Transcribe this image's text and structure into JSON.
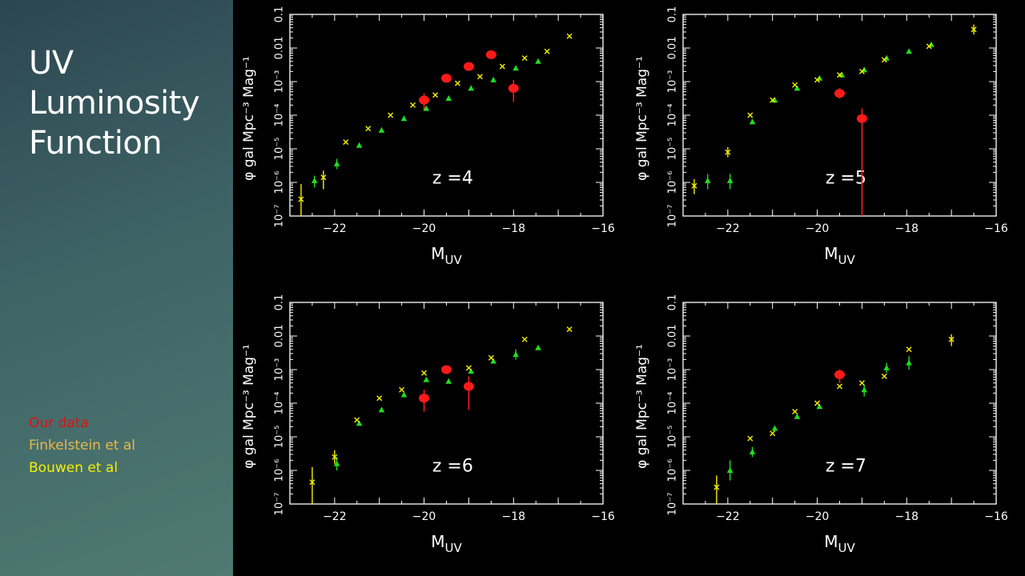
{
  "slide": {
    "title_lines": [
      "UV",
      "Luminosity",
      "Function"
    ],
    "legend": [
      {
        "label": "Our data",
        "color": "#e01010"
      },
      {
        "label": "Finkelstein et al",
        "color": "#e8b84a"
      },
      {
        "label": "Bouwen et al",
        "color": "#f5f000"
      }
    ]
  },
  "chart_data": [
    {
      "type": "scatter",
      "annotation": "z  =4",
      "xlabel": "M",
      "xlabel_sub": "UV",
      "ylabel": "φ gal Mpc⁻³ Mag⁻¹",
      "xlim": [
        -23,
        -16
      ],
      "ylim_log10": [
        -7,
        -1
      ],
      "x_ticks": [
        -22,
        -20,
        -18,
        -16
      ],
      "y_ticks": [
        "10⁻⁷",
        "10⁻⁶",
        "10⁻⁵",
        "10⁻⁴",
        "10⁻³",
        "0.01",
        "0.1"
      ],
      "series": [
        {
          "marker": "circle",
          "color": "#ff1a1a",
          "points": [
            {
              "x": -20.0,
              "logy": -3.55,
              "lo": -3.85,
              "hi": -3.35
            },
            {
              "x": -19.5,
              "logy": -2.9,
              "lo": -3.0,
              "hi": -2.8
            },
            {
              "x": -19.0,
              "logy": -2.55,
              "lo": -2.62,
              "hi": -2.48
            },
            {
              "x": -18.5,
              "logy": -2.2,
              "lo": -2.28,
              "hi": -2.12
            },
            {
              "x": -18.0,
              "logy": -3.2,
              "lo": -3.6,
              "hi": -2.95
            }
          ]
        },
        {
          "marker": "triangle",
          "color": "#22dd22",
          "points": [
            {
              "x": -22.45,
              "logy": -5.95,
              "lo": -6.15,
              "hi": -5.8
            },
            {
              "x": -21.95,
              "logy": -5.45,
              "lo": -5.6,
              "hi": -5.3
            },
            {
              "x": -21.45,
              "logy": -4.9
            },
            {
              "x": -20.95,
              "logy": -4.45
            },
            {
              "x": -20.45,
              "logy": -4.1
            },
            {
              "x": -19.95,
              "logy": -3.8
            },
            {
              "x": -19.45,
              "logy": -3.5
            },
            {
              "x": -18.95,
              "logy": -3.2
            },
            {
              "x": -18.45,
              "logy": -2.95
            },
            {
              "x": -17.95,
              "logy": -2.6
            },
            {
              "x": -17.45,
              "logy": -2.4
            }
          ]
        },
        {
          "marker": "cross",
          "color": "#f5f000",
          "points": [
            {
              "x": -22.75,
              "logy": -6.5,
              "lo": -7.0,
              "hi": -6.05
            },
            {
              "x": -22.25,
              "logy": -5.85,
              "lo": -6.2,
              "hi": -5.65
            },
            {
              "x": -21.75,
              "logy": -4.8
            },
            {
              "x": -21.25,
              "logy": -4.4
            },
            {
              "x": -20.75,
              "logy": -4.0
            },
            {
              "x": -20.25,
              "logy": -3.7
            },
            {
              "x": -19.75,
              "logy": -3.4
            },
            {
              "x": -19.25,
              "logy": -3.05
            },
            {
              "x": -18.75,
              "logy": -2.85
            },
            {
              "x": -18.25,
              "logy": -2.55
            },
            {
              "x": -17.75,
              "logy": -2.3
            },
            {
              "x": -17.25,
              "logy": -2.1
            },
            {
              "x": -16.75,
              "logy": -1.65
            }
          ]
        }
      ]
    },
    {
      "type": "scatter",
      "annotation": "z  =5",
      "xlabel": "M",
      "xlabel_sub": "UV",
      "ylabel": "φ gal Mpc⁻³ Mag⁻¹",
      "xlim": [
        -23,
        -16
      ],
      "ylim_log10": [
        -7,
        -1
      ],
      "x_ticks": [
        -22,
        -20,
        -18,
        -16
      ],
      "y_ticks": [
        "10⁻⁷",
        "10⁻⁶",
        "10⁻⁵",
        "10⁻⁴",
        "10⁻³",
        "0.01",
        "0.1"
      ],
      "series": [
        {
          "marker": "circle",
          "color": "#ff1a1a",
          "points": [
            {
              "x": -19.5,
              "logy": -3.35,
              "lo": -3.5,
              "hi": -3.2
            },
            {
              "x": -19.0,
              "logy": -4.1,
              "lo": -7.0,
              "hi": -3.8
            }
          ]
        },
        {
          "marker": "triangle",
          "color": "#22dd22",
          "points": [
            {
              "x": -22.45,
              "logy": -5.95,
              "lo": -6.2,
              "hi": -5.75
            },
            {
              "x": -21.95,
              "logy": -5.95,
              "lo": -6.2,
              "hi": -5.75
            },
            {
              "x": -21.45,
              "logy": -4.2
            },
            {
              "x": -20.95,
              "logy": -3.55
            },
            {
              "x": -20.45,
              "logy": -3.2
            },
            {
              "x": -19.95,
              "logy": -2.9
            },
            {
              "x": -19.45,
              "logy": -2.8
            },
            {
              "x": -18.95,
              "logy": -2.65
            },
            {
              "x": -18.45,
              "logy": -2.3
            },
            {
              "x": -17.95,
              "logy": -2.1
            },
            {
              "x": -17.45,
              "logy": -1.9
            }
          ]
        },
        {
          "marker": "cross",
          "color": "#f5f000",
          "points": [
            {
              "x": -22.75,
              "logy": -6.1,
              "lo": -6.35,
              "hi": -5.9
            },
            {
              "x": -22.0,
              "logy": -5.1,
              "lo": -5.25,
              "hi": -4.95
            },
            {
              "x": -21.5,
              "logy": -4.0
            },
            {
              "x": -21.0,
              "logy": -3.55
            },
            {
              "x": -20.5,
              "logy": -3.1
            },
            {
              "x": -20.0,
              "logy": -2.95
            },
            {
              "x": -19.5,
              "logy": -2.8
            },
            {
              "x": -19.0,
              "logy": -2.7
            },
            {
              "x": -18.5,
              "logy": -2.35
            },
            {
              "x": -17.5,
              "logy": -1.95
            },
            {
              "x": -16.5,
              "logy": -1.45,
              "lo": -1.6,
              "hi": -1.3
            }
          ]
        }
      ]
    },
    {
      "type": "scatter",
      "annotation": "z  =6",
      "xlabel": "M",
      "xlabel_sub": "UV",
      "ylabel": "φ gal Mpc⁻³ Mag⁻¹",
      "xlim": [
        -23,
        -16
      ],
      "ylim_log10": [
        -7,
        -1
      ],
      "x_ticks": [
        -22,
        -20,
        -18,
        -16
      ],
      "y_ticks": [
        "10⁻⁷",
        "10⁻⁶",
        "10⁻⁵",
        "10⁻⁴",
        "10⁻³",
        "0.01",
        "0.1"
      ],
      "series": [
        {
          "marker": "circle",
          "color": "#ff1a1a",
          "points": [
            {
              "x": -20.0,
              "logy": -3.85,
              "lo": -4.25,
              "hi": -3.6
            },
            {
              "x": -19.5,
              "logy": -3.0,
              "lo": -3.1,
              "hi": -2.9
            },
            {
              "x": -19.0,
              "logy": -3.5,
              "lo": -4.2,
              "hi": -3.2
            }
          ]
        },
        {
          "marker": "triangle",
          "color": "#22dd22",
          "points": [
            {
              "x": -21.95,
              "logy": -5.8,
              "lo": -6.0,
              "hi": -5.6
            },
            {
              "x": -21.45,
              "logy": -4.6
            },
            {
              "x": -20.95,
              "logy": -4.2
            },
            {
              "x": -20.45,
              "logy": -3.75
            },
            {
              "x": -19.95,
              "logy": -3.3
            },
            {
              "x": -19.45,
              "logy": -3.35
            },
            {
              "x": -18.95,
              "logy": -3.05
            },
            {
              "x": -18.45,
              "logy": -2.75
            },
            {
              "x": -17.95,
              "logy": -2.55,
              "lo": -2.7,
              "hi": -2.4
            },
            {
              "x": -17.45,
              "logy": -2.35
            }
          ]
        },
        {
          "marker": "cross",
          "color": "#f5f000",
          "points": [
            {
              "x": -22.5,
              "logy": -6.35,
              "lo": -7.0,
              "hi": -5.9
            },
            {
              "x": -22.0,
              "logy": -5.6,
              "lo": -5.8,
              "hi": -5.4
            },
            {
              "x": -21.5,
              "logy": -4.5
            },
            {
              "x": -21.0,
              "logy": -3.85
            },
            {
              "x": -20.5,
              "logy": -3.6
            },
            {
              "x": -20.0,
              "logy": -3.1
            },
            {
              "x": -19.0,
              "logy": -2.95
            },
            {
              "x": -18.5,
              "logy": -2.65
            },
            {
              "x": -17.75,
              "logy": -2.1
            },
            {
              "x": -16.75,
              "logy": -1.8
            }
          ]
        }
      ]
    },
    {
      "type": "scatter",
      "annotation": "z  =7",
      "xlabel": "M",
      "xlabel_sub": "UV",
      "ylabel": "φ gal Mpc⁻³ Mag⁻¹",
      "xlim": [
        -23,
        -16
      ],
      "ylim_log10": [
        -7,
        -1
      ],
      "x_ticks": [
        -22,
        -20,
        -18,
        -16
      ],
      "y_ticks": [
        "10⁻⁷",
        "10⁻⁶",
        "10⁻⁵",
        "10⁻⁴",
        "10⁻³",
        "0.01",
        "0.1"
      ],
      "series": [
        {
          "marker": "circle",
          "color": "#ff1a1a",
          "points": [
            {
              "x": -19.5,
              "logy": -3.15,
              "lo": -3.4,
              "hi": -3.0
            }
          ]
        },
        {
          "marker": "triangle",
          "color": "#22dd22",
          "points": [
            {
              "x": -21.95,
              "logy": -6.0,
              "lo": -6.3,
              "hi": -5.7
            },
            {
              "x": -21.45,
              "logy": -5.45,
              "lo": -5.6,
              "hi": -5.3
            },
            {
              "x": -20.95,
              "logy": -4.75
            },
            {
              "x": -20.45,
              "logy": -4.4
            },
            {
              "x": -19.95,
              "logy": -4.1
            },
            {
              "x": -18.95,
              "logy": -3.6,
              "lo": -3.8,
              "hi": -3.45
            },
            {
              "x": -18.45,
              "logy": -2.95,
              "lo": -3.1,
              "hi": -2.8
            },
            {
              "x": -17.95,
              "logy": -2.8,
              "lo": -3.0,
              "hi": -2.6
            }
          ]
        },
        {
          "marker": "cross",
          "color": "#f5f000",
          "points": [
            {
              "x": -22.25,
              "logy": -6.5,
              "lo": -7.0,
              "hi": -6.15
            },
            {
              "x": -21.5,
              "logy": -5.05
            },
            {
              "x": -21.0,
              "logy": -4.9
            },
            {
              "x": -20.5,
              "logy": -4.25
            },
            {
              "x": -20.0,
              "logy": -4.0
            },
            {
              "x": -19.5,
              "logy": -3.5
            },
            {
              "x": -19.0,
              "logy": -3.4
            },
            {
              "x": -18.5,
              "logy": -3.2
            },
            {
              "x": -17.95,
              "logy": -2.4
            },
            {
              "x": -17.0,
              "logy": -2.1,
              "lo": -2.3,
              "hi": -1.95
            }
          ]
        }
      ]
    }
  ]
}
